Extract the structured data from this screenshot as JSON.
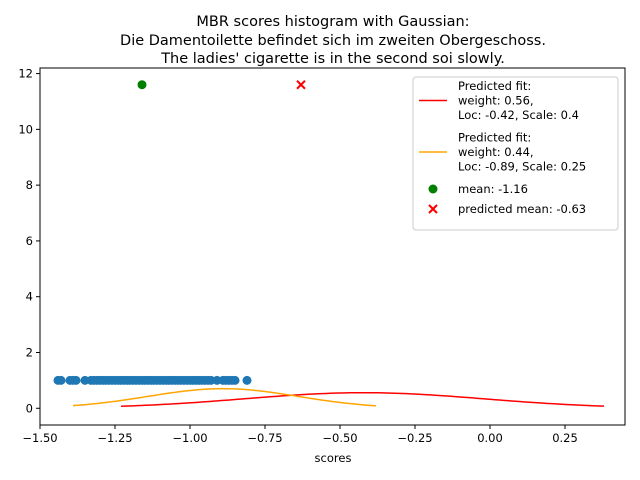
{
  "chart_data": {
    "type": "scatter",
    "title": [
      "MBR scores histogram with Gaussian:",
      "Die Damentoilette befindet sich im zweiten Obergeschoss.",
      "The ladies' cigarette is in the second soi slowly."
    ],
    "xlabel": "scores",
    "ylabel": "",
    "xlim": [
      -1.5,
      0.45
    ],
    "ylim": [
      -0.6,
      12.2
    ],
    "xticks": [
      -1.5,
      -1.25,
      -1.0,
      -0.75,
      -0.5,
      -0.25,
      0.0,
      0.25
    ],
    "xtick_labels": [
      "−1.50",
      "−1.25",
      "−1.00",
      "−0.75",
      "−0.50",
      "−0.25",
      "0.00",
      "0.25"
    ],
    "yticks": [
      0,
      2,
      4,
      6,
      8,
      10,
      12
    ],
    "ytick_labels": [
      "0",
      "2",
      "4",
      "6",
      "8",
      "10",
      "12"
    ],
    "grid": false,
    "legend_position": "top-right",
    "series": [
      {
        "kind": "scatter",
        "color": "#1f77b4",
        "marker": "circle",
        "x": [
          -1.44,
          -1.43,
          -1.4,
          -1.39,
          -1.38,
          -1.35,
          -1.33,
          -1.32,
          -1.31,
          -1.3,
          -1.29,
          -1.28,
          -1.27,
          -1.26,
          -1.25,
          -1.24,
          -1.23,
          -1.22,
          -1.21,
          -1.2,
          -1.19,
          -1.18,
          -1.17,
          -1.16,
          -1.15,
          -1.14,
          -1.13,
          -1.12,
          -1.11,
          -1.1,
          -1.09,
          -1.08,
          -1.07,
          -1.06,
          -1.05,
          -1.04,
          -1.03,
          -1.02,
          -1.01,
          -1.0,
          -0.99,
          -0.98,
          -0.97,
          -0.96,
          -0.95,
          -0.94,
          -0.93,
          -0.91,
          -0.89,
          -0.88,
          -0.87,
          -0.86,
          -0.85,
          -0.81
        ],
        "y": 1
      },
      {
        "kind": "line",
        "color": "#ff0000",
        "label_lines": [
          "Predicted fit:",
          "weight: 0.56,",
          "Loc: -0.42, Scale: 0.4"
        ],
        "weight": 0.56,
        "loc": -0.42,
        "scale": 0.4,
        "x_range": [
          -1.23,
          0.38
        ]
      },
      {
        "kind": "line",
        "color": "#ffa500",
        "label_lines": [
          "Predicted fit:",
          "weight: 0.44,",
          "Loc: -0.89, Scale: 0.25"
        ],
        "weight": 0.44,
        "loc": -0.89,
        "scale": 0.25,
        "x_range": [
          -1.39,
          -0.38
        ]
      },
      {
        "kind": "point",
        "color": "#008000",
        "marker": "circle",
        "label": "mean: -1.16",
        "x": -1.16,
        "y": 11.6
      },
      {
        "kind": "point",
        "color": "#ff0000",
        "marker": "x",
        "label": "predicted mean: -0.63",
        "x": -0.63,
        "y": 11.6
      }
    ]
  }
}
